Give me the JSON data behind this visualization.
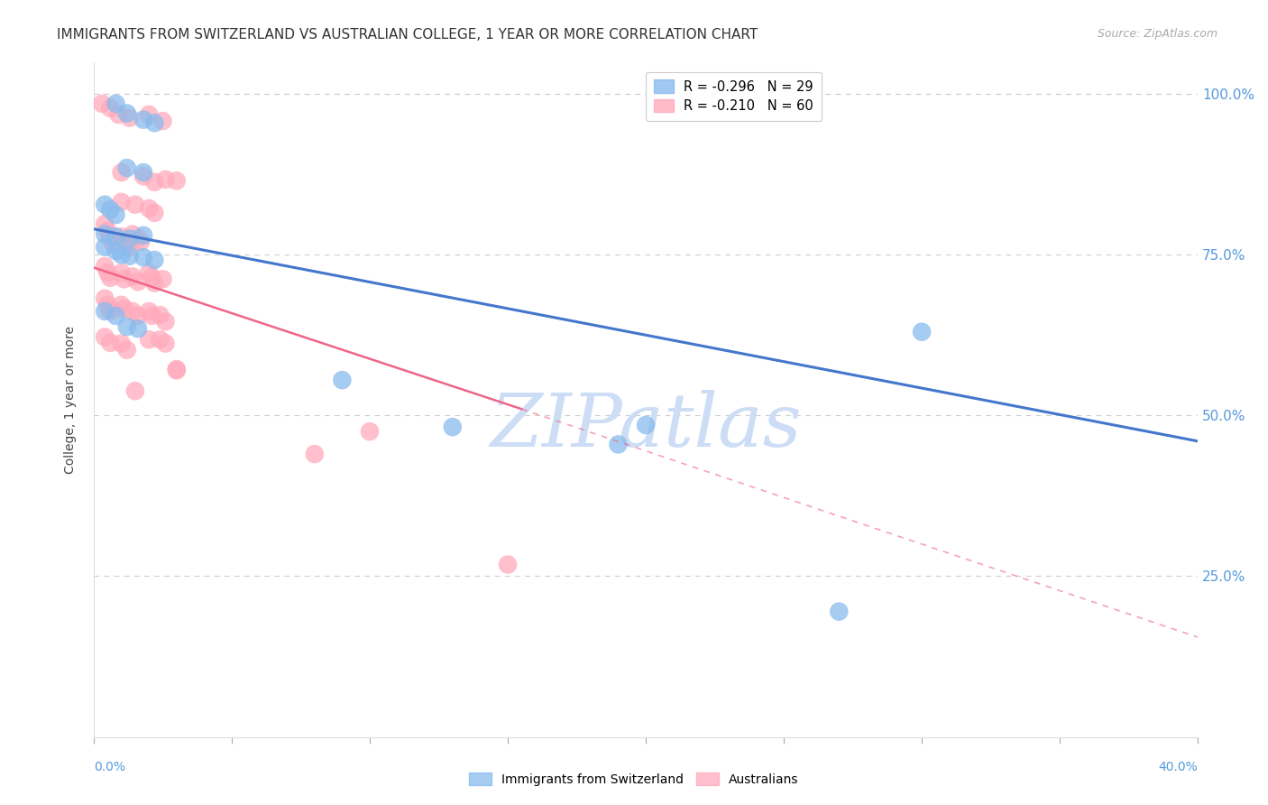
{
  "title": "IMMIGRANTS FROM SWITZERLAND VS AUSTRALIAN COLLEGE, 1 YEAR OR MORE CORRELATION CHART",
  "source": "Source: ZipAtlas.com",
  "ylabel": "College, 1 year or more",
  "right_yticks": [
    "100.0%",
    "75.0%",
    "50.0%",
    "25.0%"
  ],
  "right_ytick_vals": [
    1.0,
    0.75,
    0.5,
    0.25
  ],
  "xlim": [
    0.0,
    0.4
  ],
  "ylim": [
    0.0,
    1.05
  ],
  "watermark": "ZIPatlas",
  "legend": [
    {
      "label": "R = -0.296   N = 29",
      "color": "#88bbee"
    },
    {
      "label": "R = -0.210   N = 60",
      "color": "#ffaabb"
    }
  ],
  "blue_scatter": [
    [
      0.008,
      0.985
    ],
    [
      0.012,
      0.97
    ],
    [
      0.018,
      0.96
    ],
    [
      0.022,
      0.955
    ],
    [
      0.012,
      0.885
    ],
    [
      0.018,
      0.878
    ],
    [
      0.004,
      0.828
    ],
    [
      0.006,
      0.82
    ],
    [
      0.008,
      0.812
    ],
    [
      0.004,
      0.782
    ],
    [
      0.008,
      0.778
    ],
    [
      0.013,
      0.775
    ],
    [
      0.018,
      0.78
    ],
    [
      0.004,
      0.762
    ],
    [
      0.008,
      0.756
    ],
    [
      0.01,
      0.75
    ],
    [
      0.013,
      0.748
    ],
    [
      0.018,
      0.746
    ],
    [
      0.022,
      0.742
    ],
    [
      0.004,
      0.662
    ],
    [
      0.008,
      0.655
    ],
    [
      0.012,
      0.638
    ],
    [
      0.016,
      0.635
    ],
    [
      0.2,
      0.485
    ],
    [
      0.09,
      0.555
    ],
    [
      0.13,
      0.482
    ],
    [
      0.3,
      0.63
    ],
    [
      0.19,
      0.455
    ],
    [
      0.27,
      0.195
    ]
  ],
  "pink_scatter": [
    [
      0.003,
      0.985
    ],
    [
      0.006,
      0.978
    ],
    [
      0.009,
      0.968
    ],
    [
      0.013,
      0.963
    ],
    [
      0.02,
      0.968
    ],
    [
      0.025,
      0.958
    ],
    [
      0.01,
      0.878
    ],
    [
      0.018,
      0.872
    ],
    [
      0.022,
      0.863
    ],
    [
      0.026,
      0.867
    ],
    [
      0.03,
      0.865
    ],
    [
      0.01,
      0.832
    ],
    [
      0.015,
      0.828
    ],
    [
      0.02,
      0.822
    ],
    [
      0.022,
      0.815
    ],
    [
      0.004,
      0.798
    ],
    [
      0.005,
      0.787
    ],
    [
      0.006,
      0.778
    ],
    [
      0.007,
      0.768
    ],
    [
      0.01,
      0.778
    ],
    [
      0.012,
      0.768
    ],
    [
      0.013,
      0.762
    ],
    [
      0.014,
      0.782
    ],
    [
      0.016,
      0.776
    ],
    [
      0.017,
      0.77
    ],
    [
      0.004,
      0.732
    ],
    [
      0.005,
      0.722
    ],
    [
      0.006,
      0.714
    ],
    [
      0.01,
      0.722
    ],
    [
      0.011,
      0.712
    ],
    [
      0.014,
      0.716
    ],
    [
      0.016,
      0.708
    ],
    [
      0.02,
      0.722
    ],
    [
      0.021,
      0.715
    ],
    [
      0.022,
      0.706
    ],
    [
      0.025,
      0.712
    ],
    [
      0.004,
      0.682
    ],
    [
      0.005,
      0.672
    ],
    [
      0.006,
      0.662
    ],
    [
      0.01,
      0.672
    ],
    [
      0.011,
      0.666
    ],
    [
      0.014,
      0.662
    ],
    [
      0.016,
      0.655
    ],
    [
      0.02,
      0.662
    ],
    [
      0.021,
      0.655
    ],
    [
      0.024,
      0.656
    ],
    [
      0.026,
      0.646
    ],
    [
      0.004,
      0.622
    ],
    [
      0.006,
      0.613
    ],
    [
      0.01,
      0.612
    ],
    [
      0.012,
      0.602
    ],
    [
      0.015,
      0.538
    ],
    [
      0.02,
      0.618
    ],
    [
      0.024,
      0.618
    ],
    [
      0.026,
      0.612
    ],
    [
      0.03,
      0.57
    ],
    [
      0.03,
      0.572
    ],
    [
      0.1,
      0.475
    ],
    [
      0.15,
      0.268
    ],
    [
      0.08,
      0.44
    ]
  ],
  "blue_line_solid": {
    "x": [
      0.0,
      0.4
    ],
    "y": [
      0.79,
      0.46
    ]
  },
  "pink_line_solid": {
    "x": [
      0.0,
      0.155
    ],
    "y": [
      0.73,
      0.51
    ]
  },
  "pink_line_dashed": {
    "x": [
      0.155,
      0.4
    ],
    "y": [
      0.51,
      0.155
    ]
  },
  "scatter_size": 220,
  "blue_color": "#88bbee",
  "pink_color": "#ffaabb",
  "blue_line_color": "#4477cc",
  "pink_line_color": "#ee6688",
  "grid_color": "#cccccc",
  "axis_color": "#5599dd",
  "title_fontsize": 11,
  "source_fontsize": 9,
  "watermark_color": "#ccddf5",
  "watermark_fontsize": 60
}
